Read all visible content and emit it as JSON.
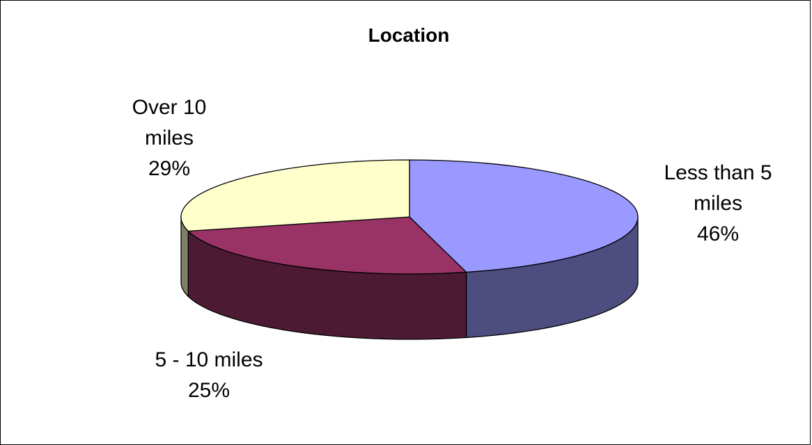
{
  "chart_data": {
    "type": "pie",
    "title": "Location",
    "slices": [
      {
        "name": "Less than 5 miles",
        "label_lines": [
          "Less than 5",
          "miles"
        ],
        "percent_label": "46%",
        "value": 46,
        "top_color": "#9999ff",
        "side_color": "#4d4d80"
      },
      {
        "name": "5 - 10 miles",
        "label_lines": [
          "5 - 10 miles"
        ],
        "percent_label": "25%",
        "value": 25,
        "top_color": "#993366",
        "side_color": "#4d1a33"
      },
      {
        "name": "Over 10 miles",
        "label_lines": [
          "Over 10",
          "miles"
        ],
        "percent_label": "29%",
        "value": 29,
        "top_color": "#ffffcc",
        "side_color": "#808066"
      }
    ]
  }
}
